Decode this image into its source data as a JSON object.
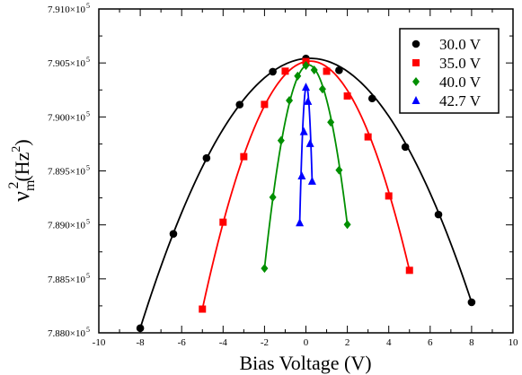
{
  "chart_data": {
    "type": "scatter",
    "xlabel": "Bias Voltage (V)",
    "ylabel_main": "ν",
    "ylabel_sub": "m",
    "ylabel_sup": "2",
    "ylabel_unit_open": "(Hz",
    "ylabel_unit_sup": "2",
    "ylabel_unit_close": ")",
    "xlim": [
      -10,
      10
    ],
    "ylim": [
      788000,
      791000
    ],
    "x_ticks": [
      -10,
      -8,
      -6,
      -4,
      -2,
      0,
      2,
      4,
      6,
      8,
      10
    ],
    "x_tick_labels": [
      "-10",
      "-8",
      "-6",
      "-4",
      "-2",
      "0",
      "2",
      "4",
      "6",
      "8",
      "10"
    ],
    "y_ticks": [
      788000,
      788500,
      789000,
      789500,
      790000,
      790500,
      791000
    ],
    "y_tick_mantissas": [
      "7.880×10",
      "7.885×10",
      "7.890×10",
      "7.895×10",
      "7.900×10",
      "7.905×10",
      "7.910×10"
    ],
    "y_tick_exponent": "5",
    "legend_position": "top-right",
    "grid": false,
    "series": [
      {
        "name": "30.0 V",
        "color": "#000000",
        "marker": "circle",
        "x": [
          -8.0,
          -6.4,
          -4.8,
          -3.2,
          -1.6,
          0.0,
          1.6,
          3.2,
          4.8,
          6.4,
          8.0
        ],
        "y": [
          788043,
          788917,
          789619,
          790114,
          790419,
          790541,
          790432,
          790171,
          789722,
          789096,
          788283
        ],
        "fit": [
          788043,
          790541,
          788283
        ]
      },
      {
        "name": "35.0 V",
        "color": "#ff0000",
        "marker": "square",
        "x": [
          -5.0,
          -4.0,
          -3.0,
          -2.0,
          -1.0,
          0.0,
          1.0,
          2.0,
          3.0,
          4.0,
          5.0
        ],
        "y": [
          788220,
          789025,
          789632,
          790116,
          790424,
          790513,
          790423,
          790194,
          789815,
          789268,
          788579
        ],
        "fit": [
          788220,
          790513,
          788579
        ]
      },
      {
        "name": "40.0 V",
        "color": "#008f00",
        "marker": "diamond",
        "x": [
          -2.0,
          -1.6,
          -1.2,
          -0.8,
          -0.4,
          0.0,
          0.4,
          0.8,
          1.2,
          1.6,
          2.0
        ],
        "y": [
          788597,
          789256,
          789781,
          790152,
          790379,
          790476,
          790435,
          790258,
          789951,
          789507,
          789003
        ],
        "fit": [
          788597,
          790476,
          789003
        ]
      },
      {
        "name": "42.7 V",
        "color": "#0000ff",
        "marker": "triangle",
        "x": [
          -0.3,
          -0.2,
          -0.1,
          0.0,
          0.1,
          0.2,
          0.3
        ],
        "y": [
          789020,
          789454,
          789865,
          790276,
          790145,
          789755,
          789405
        ],
        "fit": [
          789020,
          790276,
          789405
        ]
      }
    ]
  }
}
